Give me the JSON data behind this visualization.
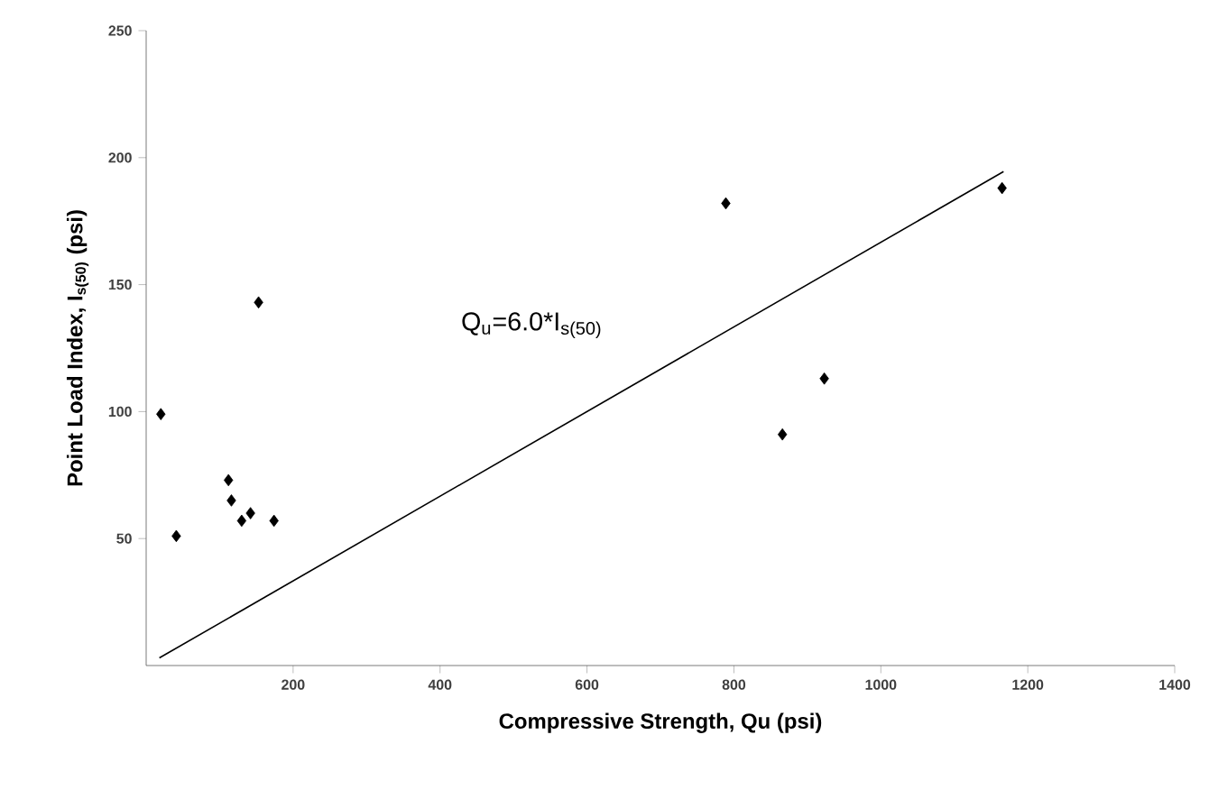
{
  "chart_data": {
    "type": "scatter",
    "xlabel": "Compressive Strength, Qu (psi)",
    "ylabel": "Point Load Index, I$_{s(50)}$ (psi)",
    "annotations": [
      "Q$_{u}$=6.0*I$_{s(50)}$"
    ],
    "xlim": [
      0,
      1400
    ],
    "ylim": [
      0,
      250
    ],
    "xticks": [
      200,
      400,
      600,
      800,
      1000,
      1200,
      1400
    ],
    "yticks": [
      50,
      100,
      150,
      200,
      250
    ],
    "grid": false,
    "marker": "diamond",
    "series": [
      {
        "color": "#000000",
        "x": [
          20,
          41,
          112,
          116,
          130,
          142,
          174,
          153,
          789,
          866,
          923,
          1165
        ],
        "values": [
          99,
          51,
          73,
          65,
          57,
          60,
          57,
          143,
          182,
          91,
          113,
          188
        ]
      },
      {
        "type": "line",
        "color": "#000000",
        "marker": "none",
        "x": [
          18,
          1167
        ],
        "values": [
          3,
          194.5
        ]
      }
    ]
  }
}
